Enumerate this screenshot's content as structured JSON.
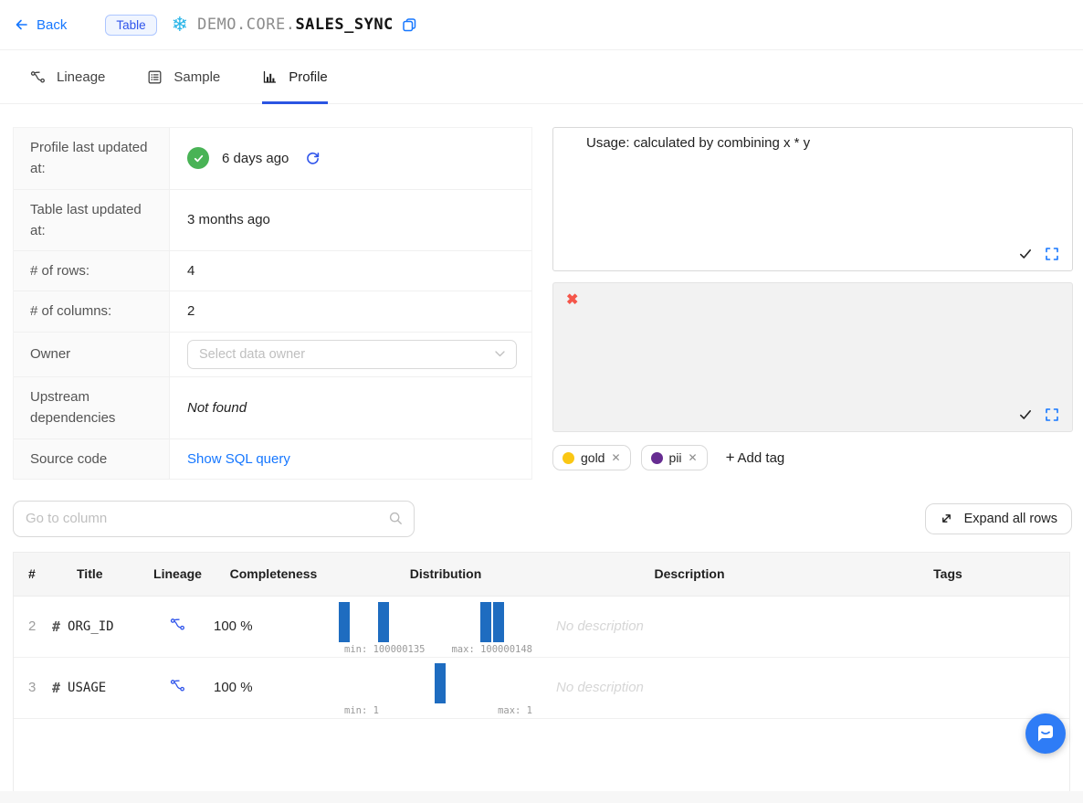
{
  "header": {
    "back_label": "Back",
    "type_badge": "Table",
    "title_prefix": "DEMO.CORE.",
    "title_name": "SALES_SYNC"
  },
  "tabs": [
    {
      "label": "Lineage"
    },
    {
      "label": "Sample"
    },
    {
      "label": "Profile"
    }
  ],
  "info": {
    "rows": [
      {
        "label": "Profile last updated at:",
        "value": "6 days ago"
      },
      {
        "label": "Table last updated at:",
        "value": "3 months ago"
      },
      {
        "label": "# of rows:",
        "value": "4"
      },
      {
        "label": "# of columns:",
        "value": "2"
      },
      {
        "label": "Owner",
        "placeholder": "Select data owner"
      },
      {
        "label": "Upstream dependencies",
        "value": "Not found"
      },
      {
        "label": "Source code",
        "value": "Show SQL query"
      }
    ]
  },
  "description_panel": {
    "text": "Usage: calculated by combining x * y"
  },
  "tags": {
    "items": [
      {
        "label": "gold",
        "color": "#fac714"
      },
      {
        "label": "pii",
        "color": "#662c91"
      }
    ],
    "add_label": "Add tag"
  },
  "toolbar": {
    "search_placeholder": "Go to column",
    "expand_label": "Expand all rows"
  },
  "columns_table": {
    "headers": [
      "#",
      "Title",
      "Lineage",
      "Completeness",
      "Distribution",
      "Description",
      "Tags"
    ],
    "rows": [
      {
        "num": "2",
        "title": "ORG_ID",
        "completeness": "100 %",
        "description": "No description"
      },
      {
        "num": "3",
        "title": "USAGE",
        "completeness": "100 %",
        "description": "No description"
      }
    ]
  },
  "chart_data": [
    {
      "type": "bar",
      "title": "ORG_ID distribution histogram",
      "min": 100000135,
      "max": 100000148,
      "min_label": "min: 100000135",
      "max_label": "max: 100000148",
      "bar_positions": [
        0,
        0.203,
        0.731,
        0.797
      ],
      "bar_heights": [
        1,
        1,
        1,
        1
      ]
    },
    {
      "type": "bar",
      "title": "USAGE distribution histogram",
      "min": 1,
      "max": 1,
      "min_label": "min: 1",
      "max_label": "max: 1",
      "bar_positions": [
        0.495
      ],
      "bar_heights": [
        1
      ]
    }
  ],
  "colors": {
    "accent_blue": "#1677ff",
    "geekblue": "#2f54eb",
    "tab_ink": "#2b55e2",
    "bar_blue": "#1e6cc0",
    "success_green": "#49b356",
    "snowflake_blue": "#29b5e8",
    "broken_image_red": "#f5564a",
    "chat_blue": "#2e7cf6"
  }
}
